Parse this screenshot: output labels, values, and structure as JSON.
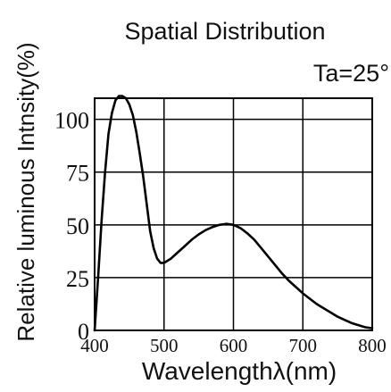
{
  "chart_data": {
    "type": "line",
    "title": "Spatial Distribution",
    "annotation": "Ta=25°",
    "xlabel": "Wavelengthλ(nm)",
    "ylabel": "Relative luminous Intnsity(%)",
    "xlim": [
      400,
      800
    ],
    "ylim": [
      0,
      110
    ],
    "xticks": [
      400,
      500,
      600,
      700,
      800
    ],
    "xtick_labels": [
      "400",
      "500",
      "600",
      "700",
      "800"
    ],
    "yticks": [
      0,
      25,
      50,
      75,
      100
    ],
    "ytick_labels": [
      "0",
      "25",
      "50",
      "75",
      "100"
    ],
    "grid": true,
    "series": [
      {
        "x": [
          400,
          405,
          410,
          415,
          420,
          425,
          430,
          435,
          440,
          445,
          450,
          455,
          460,
          465,
          470,
          475,
          480,
          485,
          490,
          495,
          500,
          510,
          520,
          530,
          540,
          550,
          560,
          570,
          580,
          590,
          600,
          610,
          620,
          630,
          640,
          650,
          660,
          670,
          680,
          690,
          700,
          710,
          720,
          730,
          740,
          750,
          760,
          770,
          780,
          790,
          800
        ],
        "y": [
          0,
          25,
          52,
          75,
          93,
          103,
          109,
          111,
          111,
          110,
          107,
          102,
          94,
          84,
          73,
          60,
          47,
          39,
          34,
          32,
          32,
          34,
          37,
          40,
          43,
          45.5,
          47.5,
          49,
          50,
          50.5,
          50,
          48.5,
          46,
          43,
          39,
          35,
          31,
          27,
          23.5,
          20.5,
          17.5,
          15,
          12.5,
          10.5,
          8.5,
          6.5,
          5,
          3.5,
          2.5,
          1.5,
          1
        ]
      }
    ],
    "colors": {
      "line": "#000000",
      "grid": "#000000"
    }
  }
}
